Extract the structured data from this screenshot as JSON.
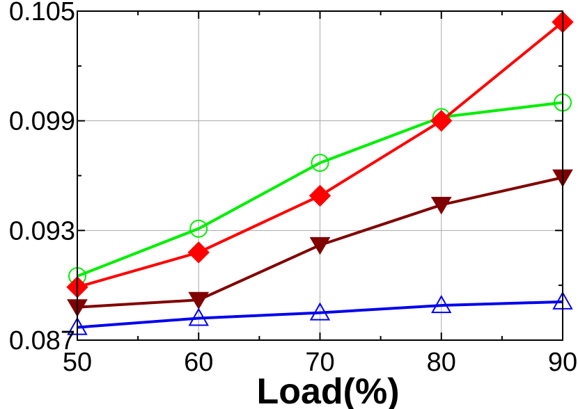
{
  "chart_data": {
    "type": "line",
    "title": "",
    "xlabel": "Load(%)",
    "ylabel": "",
    "x": [
      50,
      60,
      70,
      80,
      90
    ],
    "xlim": [
      50,
      90
    ],
    "ylim": [
      0.087,
      0.105
    ],
    "x_ticks": [
      "50",
      "60",
      "70",
      "80",
      "90"
    ],
    "y_ticks": [
      "0.087",
      "0.093",
      "0.099",
      "0.105"
    ],
    "grid": true,
    "series": [
      {
        "color": "#00ee00",
        "marker": "circle-open",
        "values": [
          0.0905,
          0.0931,
          0.0967,
          0.0992,
          0.1
        ]
      },
      {
        "color": "#ff0000",
        "marker": "diamond-filled",
        "values": [
          0.0899,
          0.0918,
          0.0949,
          0.099,
          0.1044
        ]
      },
      {
        "color": "#800000",
        "marker": "triangle-down-filled",
        "values": [
          0.0888,
          0.0892,
          0.0922,
          0.0944,
          0.0959
        ]
      },
      {
        "color": "#0000ee",
        "marker": "triangle-up-open",
        "values": [
          0.0877,
          0.0882,
          0.0885,
          0.0889,
          0.0891
        ]
      }
    ]
  }
}
